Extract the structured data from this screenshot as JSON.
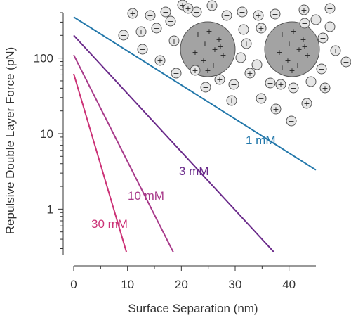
{
  "chart_data": {
    "type": "line",
    "xlabel": "Surface Separation (nm)",
    "ylabel": "Repulsive Double Layer Force (pN)",
    "xlim": [
      0,
      45
    ],
    "ylim": [
      0.25,
      400
    ],
    "yscale": "log",
    "x_ticks": [
      0,
      10,
      20,
      30,
      40
    ],
    "y_ticks": [
      1,
      10,
      100
    ],
    "x_tick_labels": [
      "0",
      "10",
      "20",
      "30",
      "40"
    ],
    "y_tick_labels": [
      "1",
      "10",
      "100"
    ],
    "grid": false,
    "series": [
      {
        "name": "1 mM",
        "color": "#2277aa",
        "x": [
          0,
          45
        ],
        "y": [
          350,
          3.3
        ]
      },
      {
        "name": "3 mM",
        "color": "#6a2a8a",
        "x": [
          0,
          37.2
        ],
        "y": [
          200,
          0.27
        ]
      },
      {
        "name": "10 mM",
        "color": "#a83a8a",
        "x": [
          0,
          18.5
        ],
        "y": [
          110,
          0.27
        ]
      },
      {
        "name": "30 mM",
        "color": "#cc3377",
        "x": [
          0,
          9.8
        ],
        "y": [
          62,
          0.27
        ]
      }
    ]
  },
  "illustration": {
    "colloid_fill": "#a3a3a3",
    "ion_fill": "#e6e6e6",
    "colloid_symbol": "+",
    "cation_symbol": "+",
    "anion_symbol": "−"
  }
}
